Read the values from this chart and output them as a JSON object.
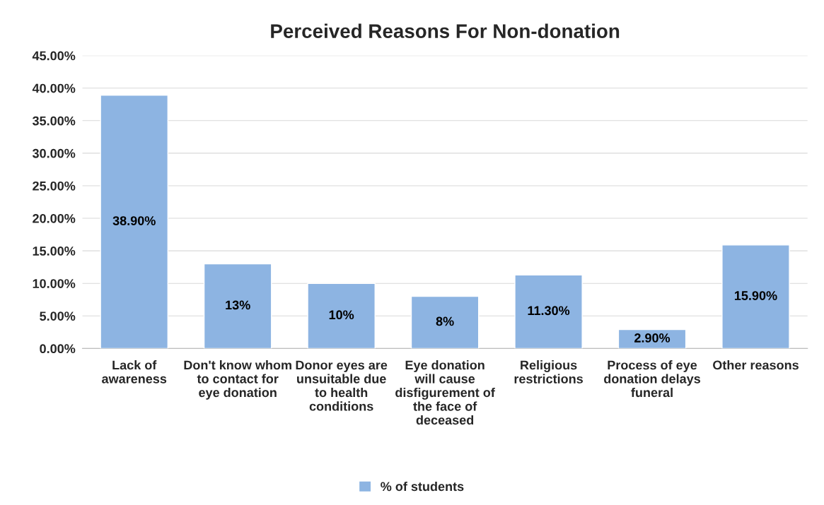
{
  "chart_data": {
    "type": "bar",
    "title": "Perceived Reasons For Non-donation",
    "categories": [
      "Lack of awareness",
      "Don't know whom to contact for eye donation",
      "Donor eyes are unsuitable due to health conditions",
      "Eye donation will cause disfigurement of the face of deceased",
      "Religious restrictions",
      "Process of eye donation delays funeral",
      "Other reasons"
    ],
    "series": [
      {
        "name": "% of students",
        "color": "#8db4e2",
        "values": [
          38.9,
          13,
          10,
          8,
          11.3,
          2.9,
          15.9
        ],
        "value_labels": [
          "38.90%",
          "13%",
          "10%",
          "8%",
          "11.30%",
          "2.90%",
          "15.90%"
        ]
      }
    ],
    "ylim": [
      0,
      45
    ],
    "yticks": [
      {
        "value": 0,
        "label": "0.00%"
      },
      {
        "value": 5,
        "label": "5.00%"
      },
      {
        "value": 10,
        "label": "10.00%"
      },
      {
        "value": 15,
        "label": "15.00%"
      },
      {
        "value": 20,
        "label": "20.00%"
      },
      {
        "value": 25,
        "label": "25.00%"
      },
      {
        "value": 30,
        "label": "30.00%"
      },
      {
        "value": 35,
        "label": "35.00%"
      },
      {
        "value": 40,
        "label": "40.00%"
      },
      {
        "value": 45,
        "label": "45.00%"
      }
    ],
    "grid": "y",
    "legend": "bottom"
  }
}
